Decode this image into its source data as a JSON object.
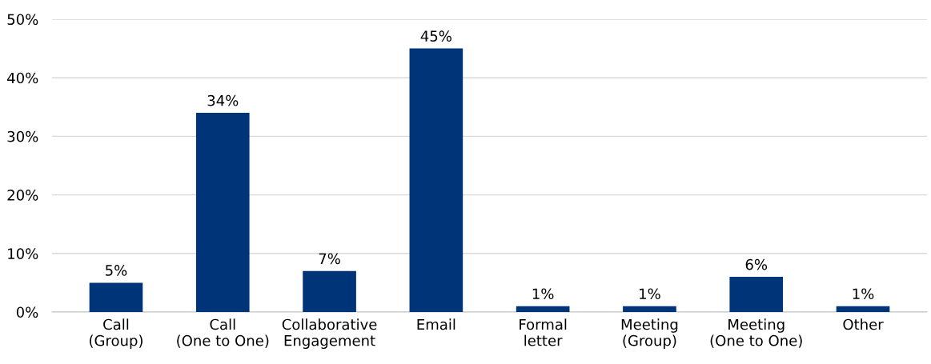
{
  "chart_data": {
    "type": "bar",
    "categories": [
      "Call\n(Group)",
      "Call\n(One to One)",
      "Collaborative\nEngagement",
      "Email",
      "Formal\nletter",
      "Meeting\n(Group)",
      "Meeting\n(One to One)",
      "Other"
    ],
    "values": [
      5,
      34,
      7,
      45,
      1,
      1,
      6,
      1
    ],
    "color": "#003478",
    "ylim": [
      0,
      50
    ],
    "yticks": [
      {
        "value": 0,
        "label": "0%"
      },
      {
        "value": 10,
        "label": "10%"
      },
      {
        "value": 20,
        "label": "20%"
      },
      {
        "value": 30,
        "label": "30%"
      },
      {
        "value": 40,
        "label": "40%"
      },
      {
        "value": 50,
        "label": "50%"
      }
    ],
    "value_labels": [
      "5%",
      "34%",
      "7%",
      "45%",
      "1%",
      "1%",
      "6%",
      "1%"
    ],
    "grid": "y"
  }
}
